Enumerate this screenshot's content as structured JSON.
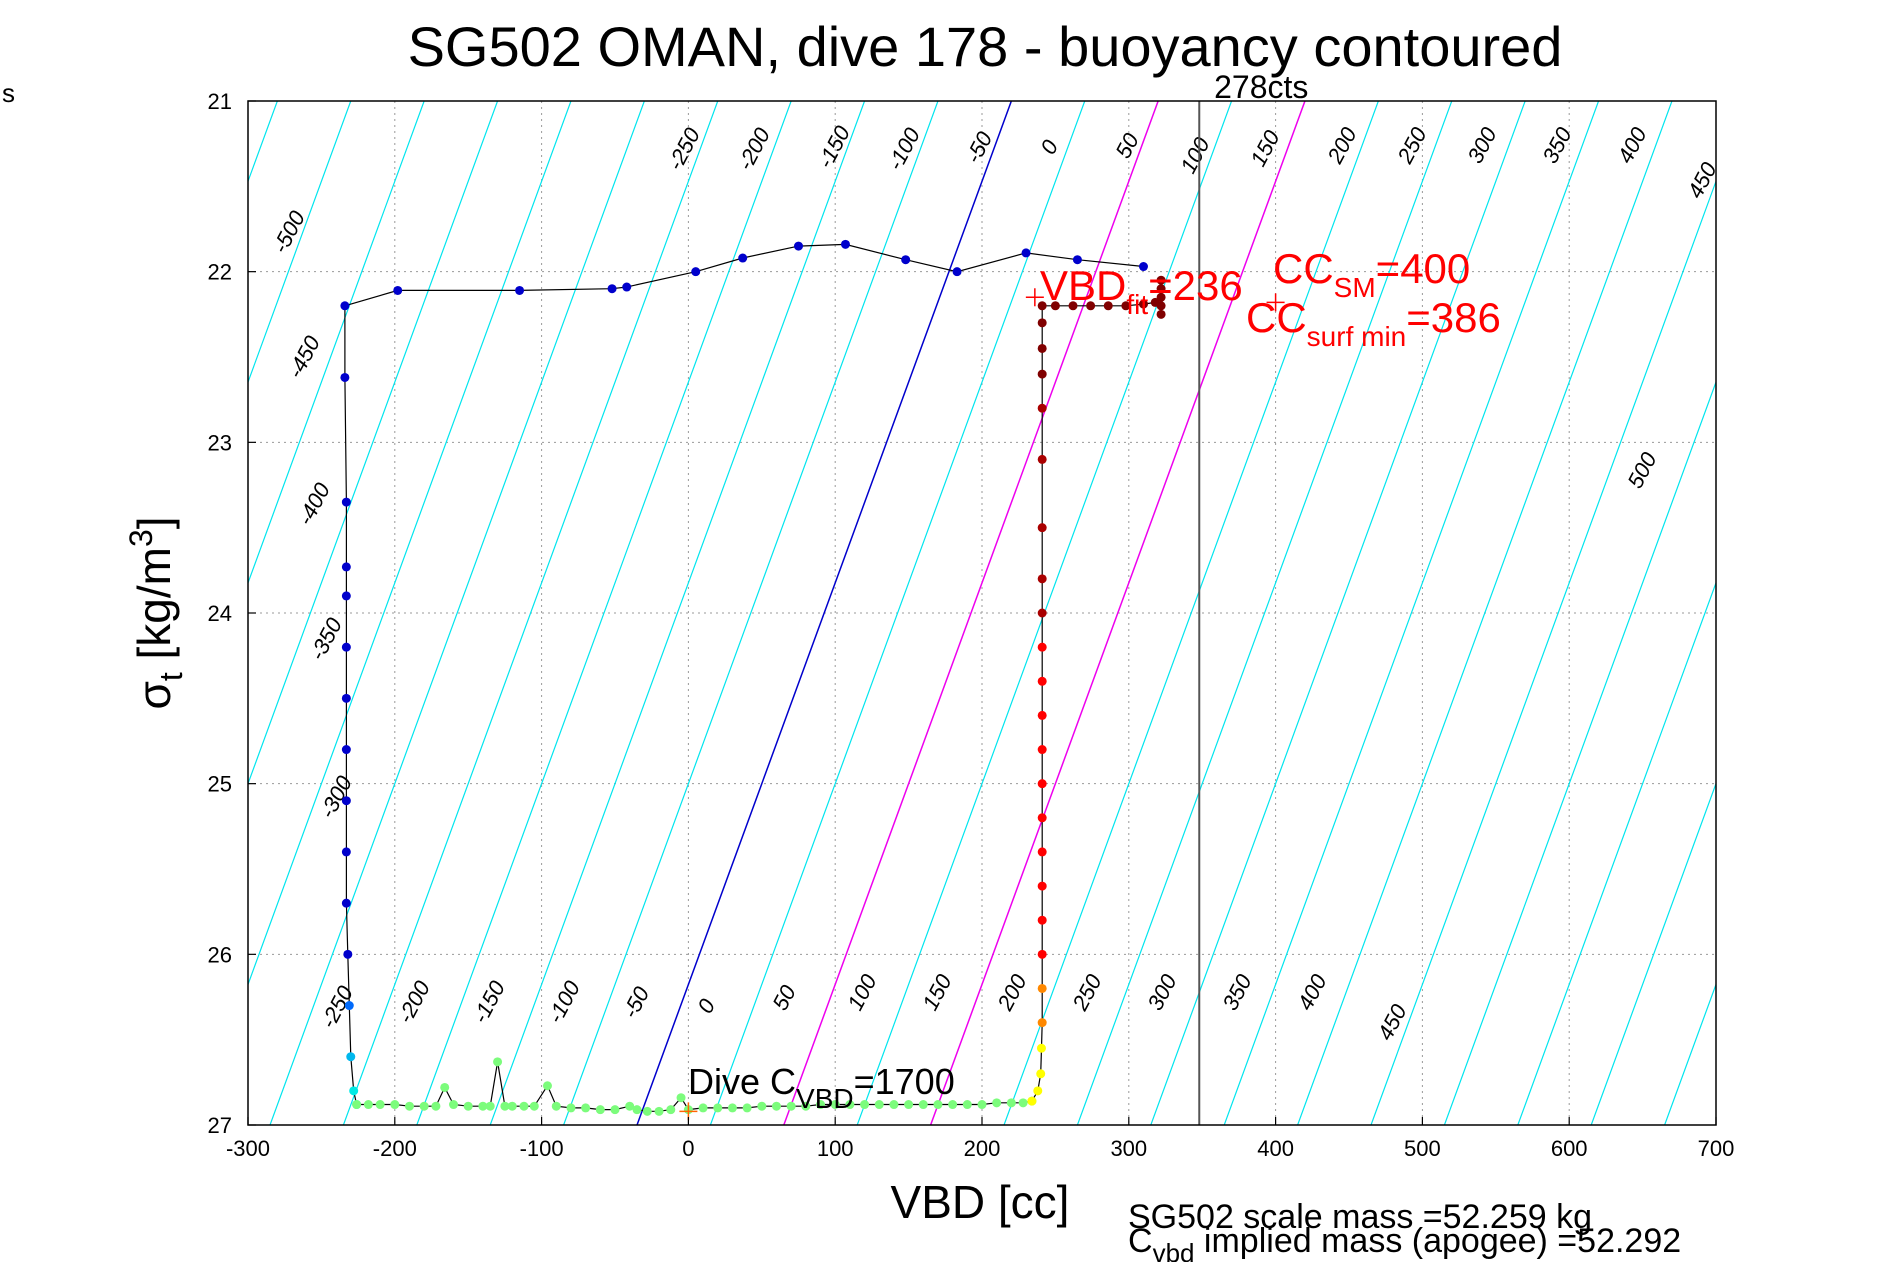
{
  "page": {
    "corner_text": "s"
  },
  "chart_data": {
    "type": "scatter",
    "title": "SG502 OMAN, dive 178 - buoyancy contoured",
    "xlabel": "VBD [cc]",
    "ylabel_main": "σ",
    "ylabel_sub": "t",
    "ylabel_unit": " [kg/m",
    "ylabel_sup": "3",
    "ylabel_close": "]",
    "xlim": [
      -300,
      700
    ],
    "ylim": [
      27,
      21
    ],
    "y_reversed": true,
    "grid": true,
    "x_ticks": [
      -300,
      -200,
      -100,
      0,
      100,
      200,
      300,
      400,
      500,
      600,
      700
    ],
    "y_ticks": [
      21,
      22,
      23,
      24,
      25,
      26,
      27
    ],
    "colors": {
      "contour": "#00e5ee",
      "zero_contour": "#0000cc",
      "magenta_contour": "#ee00ee",
      "annotation_red": "#ff0000",
      "vertical_marker": "#555555",
      "trace_line": "#000000"
    },
    "contour_top_labels": [
      "-500",
      "-450",
      "-400",
      "-350",
      "-300",
      "-250",
      "-200",
      "-150",
      "-100",
      "-50",
      "0",
      "50",
      "100",
      "150",
      "200",
      "250",
      "300",
      "350",
      "400",
      "450",
      "500"
    ],
    "contour_bottom_labels": [
      "-250",
      "-200",
      "-150",
      "-100",
      "-50",
      "0",
      "50",
      "100",
      "150",
      "200",
      "250",
      "300",
      "350",
      "400",
      "450"
    ],
    "vertical_marker": {
      "x": 348,
      "label": "278cts"
    },
    "descent_trace": {
      "color": "#0000cc",
      "points": [
        [
          310,
          21.97
        ],
        [
          265,
          21.93
        ],
        [
          230,
          21.89
        ],
        [
          183,
          22.0
        ],
        [
          148,
          21.93
        ],
        [
          107,
          21.84
        ],
        [
          75,
          21.85
        ],
        [
          37,
          21.92
        ],
        [
          5,
          22.0
        ],
        [
          -42,
          22.09
        ],
        [
          -52,
          22.1
        ],
        [
          -115,
          22.11
        ],
        [
          -198,
          22.11
        ],
        [
          -234,
          22.2
        ],
        [
          -234,
          22.62
        ],
        [
          -233,
          23.35
        ],
        [
          -233,
          23.73
        ],
        [
          -233,
          23.9
        ],
        [
          -233,
          24.2
        ],
        [
          -233,
          24.5
        ],
        [
          -233,
          24.8
        ],
        [
          -233,
          25.1
        ],
        [
          -233,
          25.4
        ],
        [
          -233,
          25.7
        ],
        [
          -232,
          26.0
        ],
        [
          -231,
          26.3
        ],
        [
          -230,
          26.6
        ],
        [
          -228,
          26.8
        ],
        [
          -226,
          26.88
        ]
      ]
    },
    "bottom_trace": {
      "color": "#7cfc7c",
      "points": [
        [
          -226,
          26.88
        ],
        [
          -218,
          26.88
        ],
        [
          -210,
          26.88
        ],
        [
          -200,
          26.88
        ],
        [
          -190,
          26.89
        ],
        [
          -180,
          26.89
        ],
        [
          -172,
          26.89
        ],
        [
          -166,
          26.78
        ],
        [
          -160,
          26.88
        ],
        [
          -150,
          26.89
        ],
        [
          -140,
          26.89
        ],
        [
          -135,
          26.89
        ],
        [
          -130,
          26.63
        ],
        [
          -125,
          26.89
        ],
        [
          -120,
          26.89
        ],
        [
          -112,
          26.89
        ],
        [
          -105,
          26.89
        ],
        [
          -96,
          26.77
        ],
        [
          -90,
          26.89
        ],
        [
          -80,
          26.9
        ],
        [
          -70,
          26.9
        ],
        [
          -60,
          26.91
        ],
        [
          -50,
          26.91
        ],
        [
          -40,
          26.89
        ],
        [
          -35,
          26.91
        ],
        [
          -28,
          26.92
        ],
        [
          -20,
          26.92
        ],
        [
          -12,
          26.91
        ],
        [
          -5,
          26.84
        ],
        [
          0,
          26.91
        ],
        [
          10,
          26.9
        ],
        [
          20,
          26.9
        ],
        [
          30,
          26.9
        ],
        [
          40,
          26.9
        ],
        [
          50,
          26.89
        ],
        [
          60,
          26.89
        ],
        [
          70,
          26.89
        ],
        [
          80,
          26.89
        ],
        [
          90,
          26.88
        ],
        [
          100,
          26.88
        ],
        [
          110,
          26.88
        ],
        [
          120,
          26.88
        ],
        [
          130,
          26.88
        ],
        [
          140,
          26.88
        ],
        [
          150,
          26.88
        ],
        [
          160,
          26.88
        ],
        [
          170,
          26.88
        ],
        [
          180,
          26.88
        ],
        [
          190,
          26.88
        ],
        [
          200,
          26.88
        ],
        [
          210,
          26.87
        ],
        [
          220,
          26.87
        ],
        [
          228,
          26.87
        ],
        [
          234,
          26.86
        ]
      ]
    },
    "ascent_trace": {
      "color_gradient": [
        "#ffff00",
        "#ff8800",
        "#ff0000",
        "#aa0000",
        "#800000"
      ],
      "points": [
        [
          234,
          26.86
        ],
        [
          238,
          26.8
        ],
        [
          240,
          26.7
        ],
        [
          240.5,
          26.55
        ],
        [
          241,
          26.4
        ],
        [
          241,
          26.2
        ],
        [
          241,
          26.0
        ],
        [
          241,
          25.8
        ],
        [
          241,
          25.6
        ],
        [
          241,
          25.4
        ],
        [
          241,
          25.2
        ],
        [
          241,
          25.0
        ],
        [
          241,
          24.8
        ],
        [
          241,
          24.6
        ],
        [
          241,
          24.4
        ],
        [
          241,
          24.2
        ],
        [
          241,
          24.0
        ],
        [
          241,
          23.8
        ],
        [
          241,
          23.5
        ],
        [
          241,
          23.1
        ],
        [
          241,
          22.8
        ],
        [
          241,
          22.6
        ],
        [
          241,
          22.45
        ],
        [
          241,
          22.3
        ],
        [
          241,
          22.2
        ],
        [
          250,
          22.2
        ],
        [
          262,
          22.2
        ],
        [
          274,
          22.2
        ],
        [
          286,
          22.2
        ],
        [
          298,
          22.2
        ],
        [
          310,
          22.19
        ],
        [
          318,
          22.18
        ],
        [
          322,
          22.15
        ],
        [
          322,
          22.1
        ],
        [
          322,
          22.05
        ],
        [
          322,
          22.25
        ],
        [
          322,
          22.2
        ]
      ]
    },
    "markers": [
      {
        "x": 236,
        "y": 22.15,
        "label": "VBD_fit"
      },
      {
        "x": 400,
        "y": 22.18,
        "label": "CC_surf_min"
      },
      {
        "x": 0,
        "y": 26.92,
        "label": "Dive C_VBD"
      }
    ],
    "annotations": {
      "vbd_fit": {
        "main": "VBD",
        "sub": "fit",
        "suffix": "=236"
      },
      "cc_sm": {
        "main": "CC",
        "sub": "SM",
        "suffix": "=400"
      },
      "cc_surf_min": {
        "main": "CC",
        "sub": "surf min",
        "suffix": "=386"
      },
      "dive_cvbd": {
        "main": "Dive C",
        "sub": "VBD",
        "suffix": "=1700"
      },
      "scale_mass": "SG502 scale mass =52.259 kg",
      "implied_mass_main": "C",
      "implied_mass_sub": "vbd",
      "implied_mass_rest": " implied mass (apogee) =52.292"
    }
  }
}
